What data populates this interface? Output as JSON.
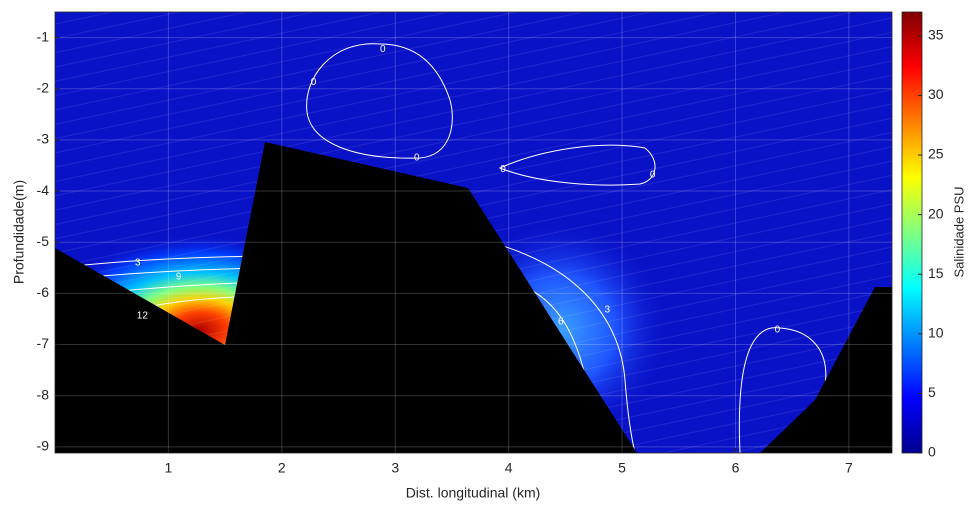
{
  "chart_data": {
    "type": "contour",
    "xlabel": "Dist. longitudinal (km)",
    "ylabel": "Profundidade(m)",
    "colorbar_label": "Salinidade PSU",
    "xlim": [
      0,
      7.38
    ],
    "ylim": [
      -9.12,
      -0.5
    ],
    "xticks": [
      1,
      2,
      3,
      4,
      5,
      6,
      7
    ],
    "yticks": [
      -1,
      -2,
      -3,
      -4,
      -5,
      -6,
      -7,
      -8,
      -9
    ],
    "clim": [
      0,
      37
    ],
    "cticks": [
      0,
      5,
      10,
      15,
      20,
      25,
      30,
      35
    ],
    "grid": true,
    "contour_labels": [
      {
        "text": "0",
        "x": 2.89,
        "y": -1.23
      },
      {
        "text": "0",
        "x": 2.28,
        "y": -1.88
      },
      {
        "text": "0",
        "x": 3.19,
        "y": -3.35
      },
      {
        "text": "0",
        "x": 3.95,
        "y": -3.58
      },
      {
        "text": "0",
        "x": 5.27,
        "y": -3.68
      },
      {
        "text": "3",
        "x": 0.73,
        "y": -5.4
      },
      {
        "text": "9",
        "x": 1.09,
        "y": -5.68
      },
      {
        "text": "12",
        "x": 0.77,
        "y": -6.44
      },
      {
        "text": "3",
        "x": 4.87,
        "y": -6.32
      },
      {
        "text": "6",
        "x": 4.46,
        "y": -6.56
      },
      {
        "text": "0",
        "x": 6.37,
        "y": -6.71
      }
    ]
  }
}
